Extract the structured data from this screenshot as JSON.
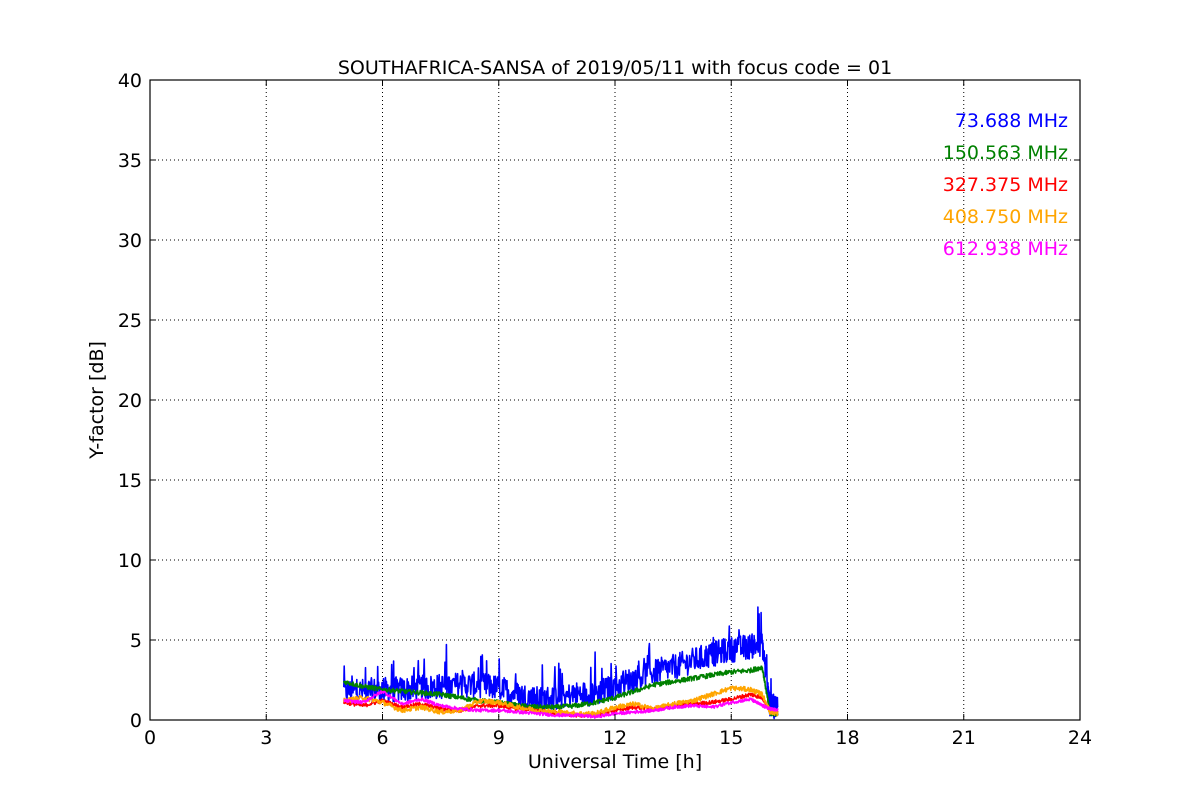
{
  "chart_data": {
    "type": "line",
    "title": "SOUTHAFRICA-SANSA of 2019/05/11 with focus code = 01",
    "xlabel": "Universal Time [h]",
    "ylabel": "Y-factor [dB]",
    "xlim": [
      0,
      24
    ],
    "ylim": [
      0,
      40
    ],
    "xticks": [
      "0",
      "3",
      "6",
      "9",
      "12",
      "15",
      "18",
      "21",
      "24"
    ],
    "yticks": [
      "0",
      "5",
      "10",
      "15",
      "20",
      "25",
      "30",
      "35",
      "40"
    ],
    "grid": true,
    "legend_position": "top-right",
    "series": [
      {
        "name": "73.688 MHz",
        "color": "#0000ff",
        "noise": 0.8,
        "x": [
          5.0,
          5.5,
          6.0,
          6.5,
          7.0,
          7.5,
          8.0,
          8.5,
          9.0,
          9.5,
          10.0,
          10.5,
          11.0,
          11.5,
          12.0,
          12.5,
          13.0,
          13.5,
          14.0,
          14.5,
          15.0,
          15.5,
          15.8,
          16.0,
          16.2
        ],
        "y": [
          1.8,
          1.8,
          1.9,
          1.9,
          2.0,
          2.1,
          2.2,
          2.2,
          2.0,
          1.6,
          1.3,
          1.4,
          1.6,
          1.7,
          2.1,
          2.6,
          3.0,
          3.3,
          3.7,
          4.1,
          4.4,
          4.6,
          4.8,
          0.9,
          0.8
        ]
      },
      {
        "name": "150.563 MHz",
        "color": "#008000",
        "noise": 0.15,
        "x": [
          5.0,
          5.5,
          6.0,
          6.5,
          7.0,
          7.5,
          8.0,
          8.5,
          9.0,
          9.5,
          10.0,
          10.5,
          11.0,
          11.5,
          12.0,
          12.5,
          13.0,
          13.5,
          14.0,
          14.5,
          15.0,
          15.5,
          15.8,
          16.0,
          16.2
        ],
        "y": [
          2.4,
          2.1,
          1.9,
          1.8,
          1.7,
          1.6,
          1.4,
          1.2,
          1.1,
          0.9,
          0.8,
          0.8,
          0.9,
          1.1,
          1.4,
          1.8,
          2.2,
          2.4,
          2.6,
          2.8,
          3.0,
          3.1,
          3.3,
          0.4,
          0.4
        ]
      },
      {
        "name": "327.375 MHz",
        "color": "#ff0000",
        "noise": 0.12,
        "x": [
          5.0,
          5.5,
          6.0,
          6.5,
          7.0,
          7.5,
          8.0,
          8.5,
          9.0,
          9.5,
          10.0,
          10.5,
          11.0,
          11.5,
          12.0,
          12.5,
          13.0,
          13.5,
          14.0,
          14.5,
          15.0,
          15.5,
          15.8,
          16.0,
          16.2
        ],
        "y": [
          1.1,
          0.9,
          1.2,
          0.8,
          1.0,
          0.7,
          0.6,
          0.9,
          0.9,
          0.7,
          0.6,
          0.4,
          0.3,
          0.3,
          0.6,
          0.8,
          0.7,
          0.9,
          1.0,
          1.1,
          1.3,
          1.6,
          1.4,
          0.6,
          0.5
        ]
      },
      {
        "name": "408.750 MHz",
        "color": "#ffa500",
        "noise": 0.15,
        "x": [
          5.0,
          5.5,
          6.0,
          6.5,
          7.0,
          7.5,
          8.0,
          8.5,
          9.0,
          9.5,
          10.0,
          10.5,
          11.0,
          11.5,
          12.0,
          12.5,
          13.0,
          13.5,
          14.0,
          14.5,
          15.0,
          15.5,
          15.8,
          16.0,
          16.2
        ],
        "y": [
          1.2,
          1.4,
          1.1,
          0.6,
          0.8,
          0.5,
          0.6,
          1.2,
          1.1,
          0.8,
          0.6,
          0.5,
          0.4,
          0.4,
          0.8,
          1.0,
          0.7,
          1.0,
          1.2,
          1.6,
          2.0,
          1.9,
          1.6,
          0.5,
          0.4
        ]
      },
      {
        "name": "612.938 MHz",
        "color": "#ff00ff",
        "noise": 0.1,
        "x": [
          5.0,
          5.5,
          6.0,
          6.5,
          7.0,
          7.5,
          8.0,
          8.5,
          9.0,
          9.5,
          10.0,
          10.5,
          11.0,
          11.5,
          12.0,
          12.5,
          13.0,
          13.5,
          14.0,
          14.5,
          15.0,
          15.5,
          15.8,
          16.0,
          16.2
        ],
        "y": [
          1.2,
          1.1,
          1.8,
          1.0,
          1.3,
          0.9,
          0.7,
          0.6,
          0.6,
          0.5,
          0.4,
          0.3,
          0.3,
          0.2,
          0.4,
          0.5,
          0.6,
          0.8,
          0.9,
          0.8,
          1.1,
          1.3,
          0.9,
          0.7,
          0.6
        ]
      }
    ]
  }
}
